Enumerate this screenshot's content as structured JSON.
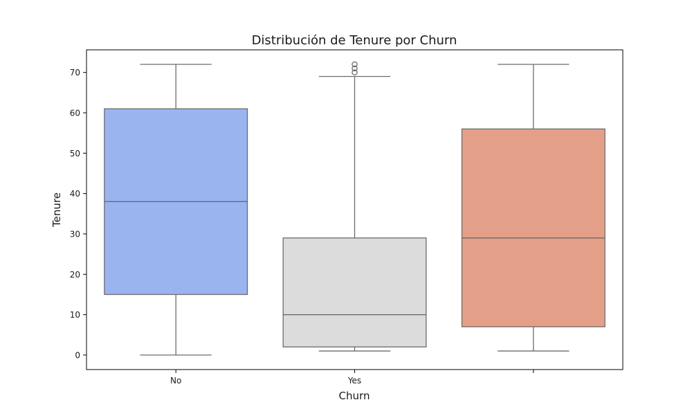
{
  "chart_data": {
    "type": "box",
    "title": "Distribución de Tenure por Churn",
    "xlabel": "Churn",
    "ylabel": "Tenure",
    "ylim": [
      -3.6,
      75.6
    ],
    "yticks": [
      0,
      10,
      20,
      30,
      40,
      50,
      60,
      70
    ],
    "grid": false,
    "legend": "none",
    "categories": [
      "No",
      "Yes",
      ""
    ],
    "boxes": [
      {
        "category": "No",
        "whisker_low": 0,
        "q1": 15,
        "median": 38,
        "q3": 61,
        "whisker_high": 72,
        "outliers": [],
        "color": "#9ab4f0"
      },
      {
        "category": "Yes",
        "whisker_low": 1,
        "q1": 2,
        "median": 10,
        "q3": 29,
        "whisker_high": 69,
        "outliers": [
          70,
          71,
          72
        ],
        "color": "#dcdcdc"
      },
      {
        "category": "",
        "whisker_low": 1,
        "q1": 7,
        "median": 29,
        "q3": 56,
        "whisker_high": 72,
        "outliers": [],
        "color": "#e49f88"
      }
    ],
    "line_color": "#6b6b6b"
  }
}
